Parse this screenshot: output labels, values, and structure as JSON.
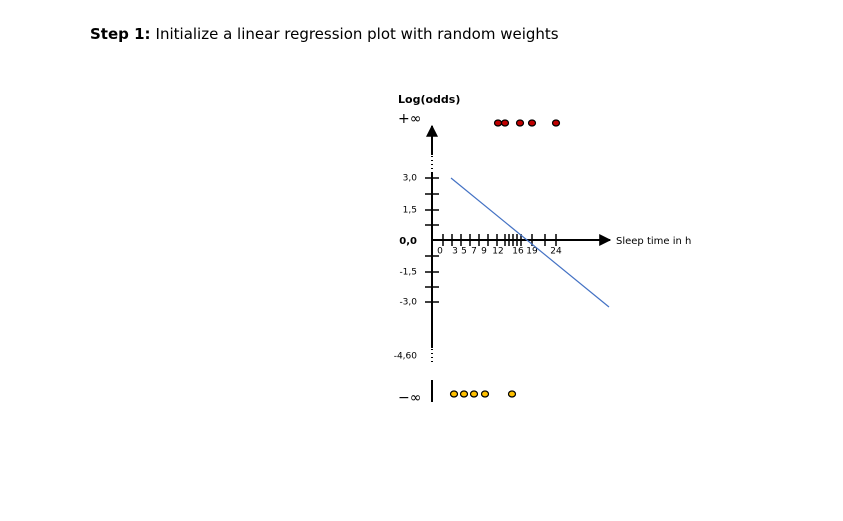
{
  "title": {
    "step": "Step 1:",
    "text": "Initialize a linear regression plot with random weights"
  },
  "y_axis": {
    "label": "Log(odds)",
    "top": "+∞",
    "bottom": "−∞",
    "ticks": [
      "3,0",
      "1,5",
      "0,0",
      "-1,5",
      "-3,0",
      "-4,60"
    ]
  },
  "x_axis": {
    "label": "Sleep time in h",
    "ticks": [
      "0",
      "3",
      "5",
      "7",
      "9",
      "12",
      "16",
      "19",
      "24"
    ]
  }
}
